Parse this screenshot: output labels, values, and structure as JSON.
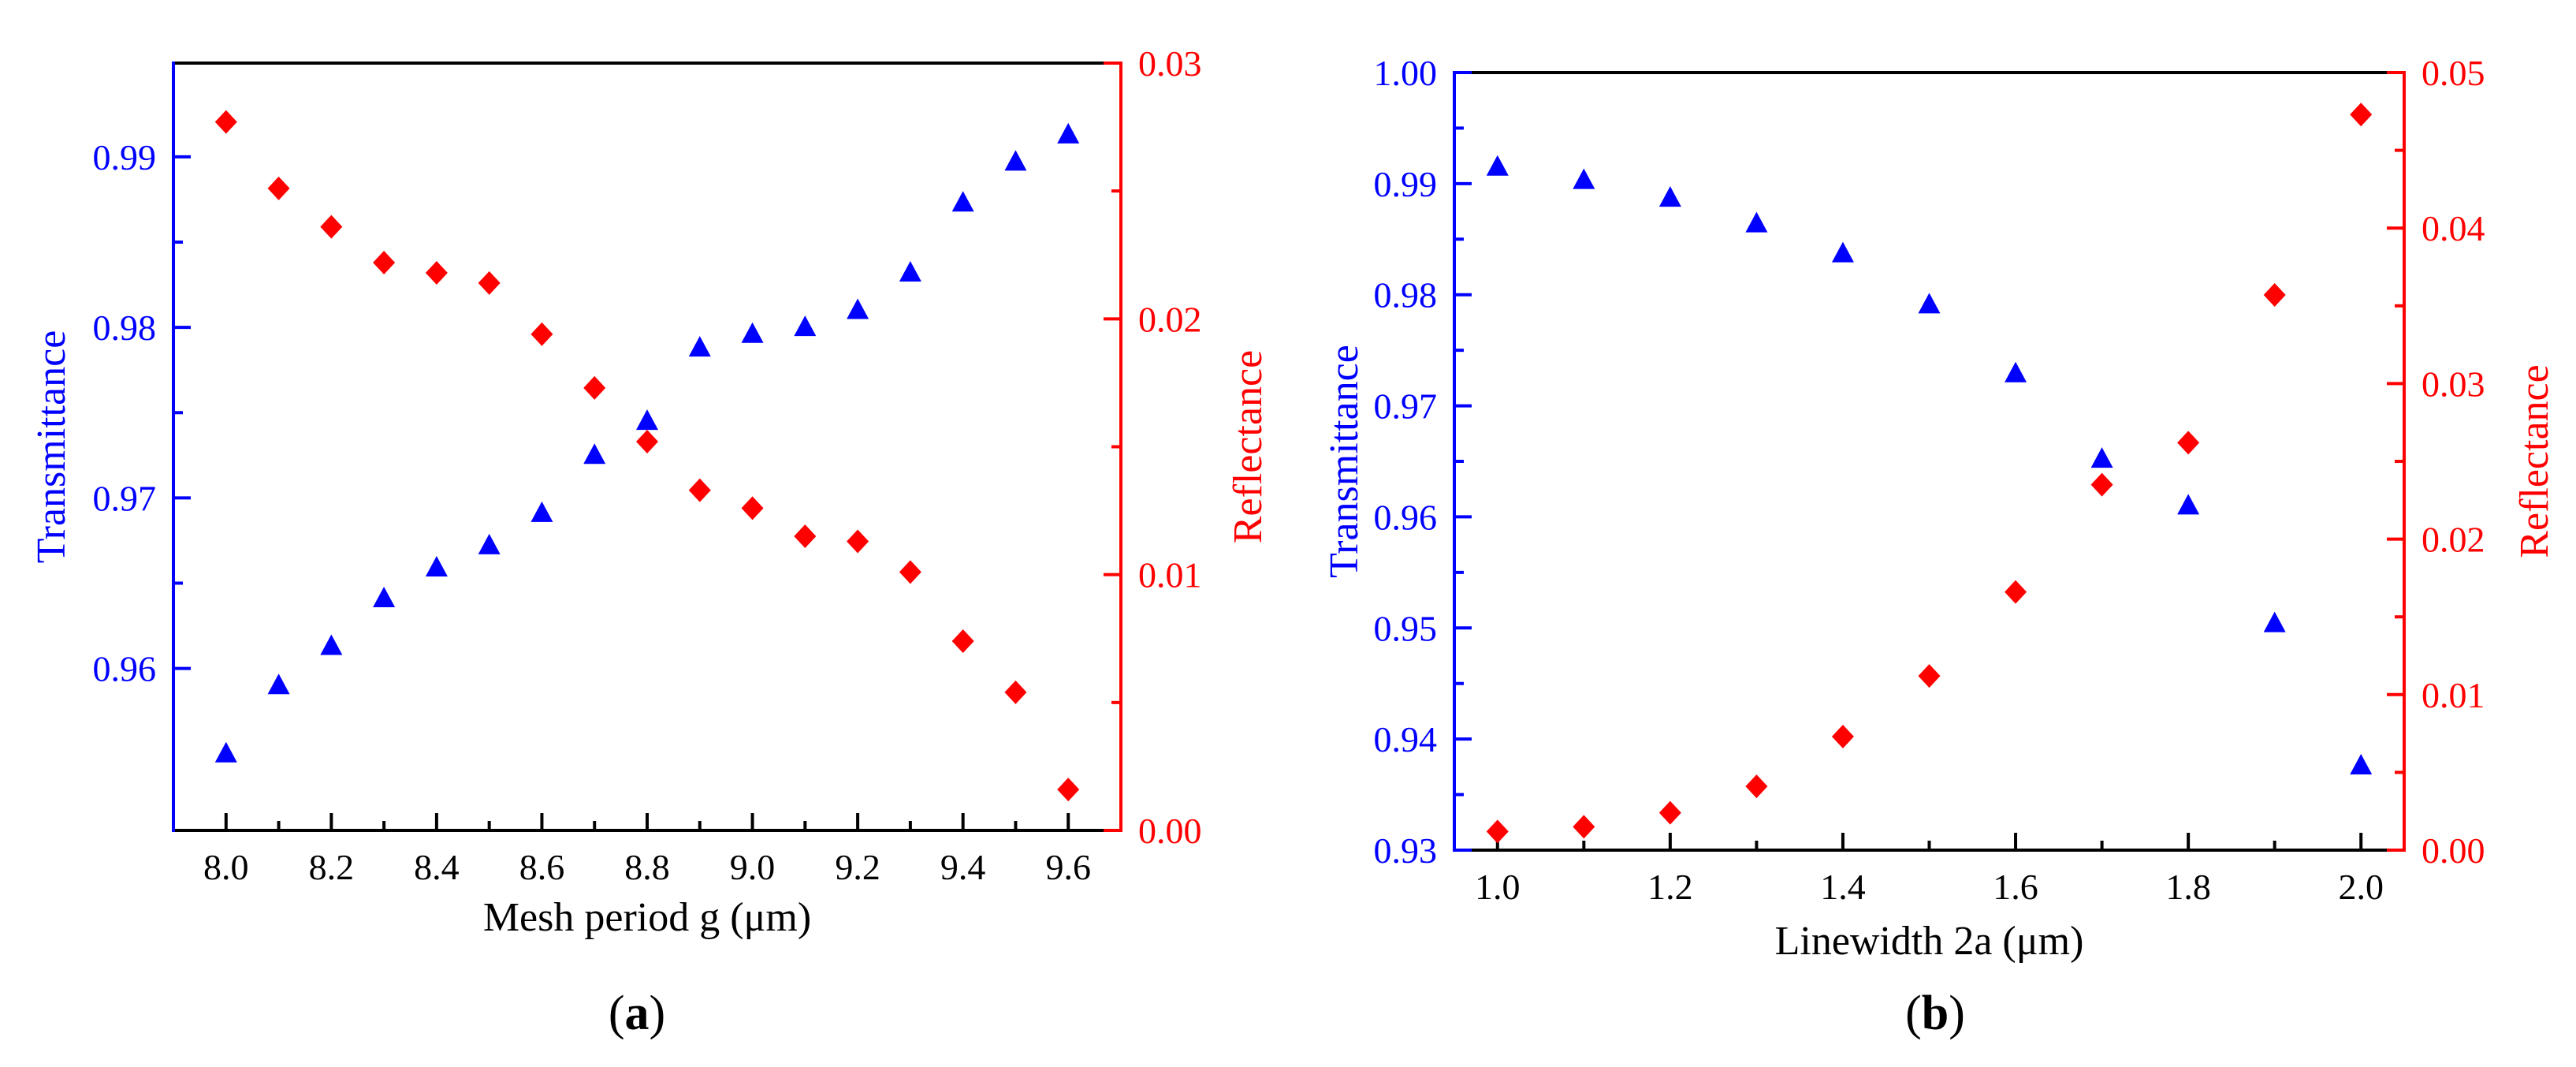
{
  "colors": {
    "transmittance": "#0000ff",
    "reflectance": "#ff0000",
    "axis": "#000000"
  },
  "panels": [
    {
      "label_prefix": "(",
      "label_letter": "a",
      "label_suffix": ")"
    },
    {
      "label_prefix": "(",
      "label_letter": "b",
      "label_suffix": ")"
    }
  ],
  "chart_data": [
    {
      "type": "scatter",
      "panel": "a",
      "xlabel": "Mesh period g (μm)",
      "ylabel_left": "Transmittance",
      "ylabel_right": "Reflectance",
      "xlim": [
        7.9,
        9.7
      ],
      "ylim_left": [
        0.9505,
        0.9955
      ],
      "ylim_right": [
        0.0,
        0.03
      ],
      "xticks": [
        "8.0",
        "8.2",
        "8.4",
        "8.6",
        "8.8",
        "9.0",
        "9.2",
        "9.4",
        "9.6"
      ],
      "yticks_left": [
        "0.96",
        "0.97",
        "0.98",
        "0.99"
      ],
      "yticks_right": [
        "0.00",
        "0.01",
        "0.02",
        "0.03"
      ],
      "series": [
        {
          "name": "Transmittance",
          "axis": "left",
          "marker": "triangle",
          "x": [
            8.0,
            8.1,
            8.2,
            8.3,
            8.4,
            8.5,
            8.6,
            8.7,
            8.8,
            8.9,
            9.0,
            9.1,
            9.2,
            9.3,
            9.4,
            9.5,
            9.6
          ],
          "y": [
            0.955,
            0.959,
            0.9613,
            0.9641,
            0.9659,
            0.9672,
            0.9691,
            0.9725,
            0.9745,
            0.9788,
            0.9796,
            0.98,
            0.981,
            0.9832,
            0.9873,
            0.9897,
            0.9913
          ]
        },
        {
          "name": "Reflectance",
          "axis": "right",
          "marker": "diamond",
          "x": [
            8.0,
            8.1,
            8.2,
            8.3,
            8.4,
            8.5,
            8.6,
            8.7,
            8.8,
            8.9,
            9.0,
            9.1,
            9.2,
            9.3,
            9.4,
            9.5,
            9.6
          ],
          "y": [
            0.0277,
            0.0251,
            0.0236,
            0.0222,
            0.0218,
            0.0214,
            0.0194,
            0.0173,
            0.0152,
            0.0133,
            0.0126,
            0.0115,
            0.0113,
            0.0101,
            0.0074,
            0.0054,
            0.0016
          ]
        }
      ]
    },
    {
      "type": "scatter",
      "panel": "b",
      "xlabel": "Linewidth 2a (μm)",
      "ylabel_left": "Transmittance",
      "ylabel_right": "Reflectance",
      "xlim": [
        0.95,
        2.05
      ],
      "ylim_left": [
        0.93,
        1.0
      ],
      "ylim_right": [
        0.0,
        0.05
      ],
      "xticks": [
        "1.0",
        "1.2",
        "1.4",
        "1.6",
        "1.8",
        "2.0"
      ],
      "yticks_left": [
        "0.93",
        "0.94",
        "0.95",
        "0.96",
        "0.97",
        "0.98",
        "0.99",
        "1.00"
      ],
      "yticks_right": [
        "0.00",
        "0.01",
        "0.02",
        "0.03",
        "0.04",
        "0.05"
      ],
      "series": [
        {
          "name": "Transmittance",
          "axis": "left",
          "marker": "triangle",
          "x": [
            1.0,
            1.1,
            1.2,
            1.3,
            1.4,
            1.5,
            1.6,
            1.7,
            1.8,
            1.9,
            2.0
          ],
          "y": [
            0.9915,
            0.9903,
            0.9887,
            0.9864,
            0.9837,
            0.9791,
            0.9729,
            0.9652,
            0.961,
            0.9504,
            0.9376
          ]
        },
        {
          "name": "Reflectance",
          "axis": "right",
          "marker": "diamond",
          "x": [
            1.0,
            1.1,
            1.2,
            1.3,
            1.4,
            1.5,
            1.6,
            1.7,
            1.8,
            1.9,
            2.0
          ],
          "y": [
            0.0012,
            0.0015,
            0.0024,
            0.0041,
            0.0073,
            0.0112,
            0.0166,
            0.0235,
            0.0262,
            0.0357,
            0.0473
          ]
        }
      ]
    }
  ]
}
